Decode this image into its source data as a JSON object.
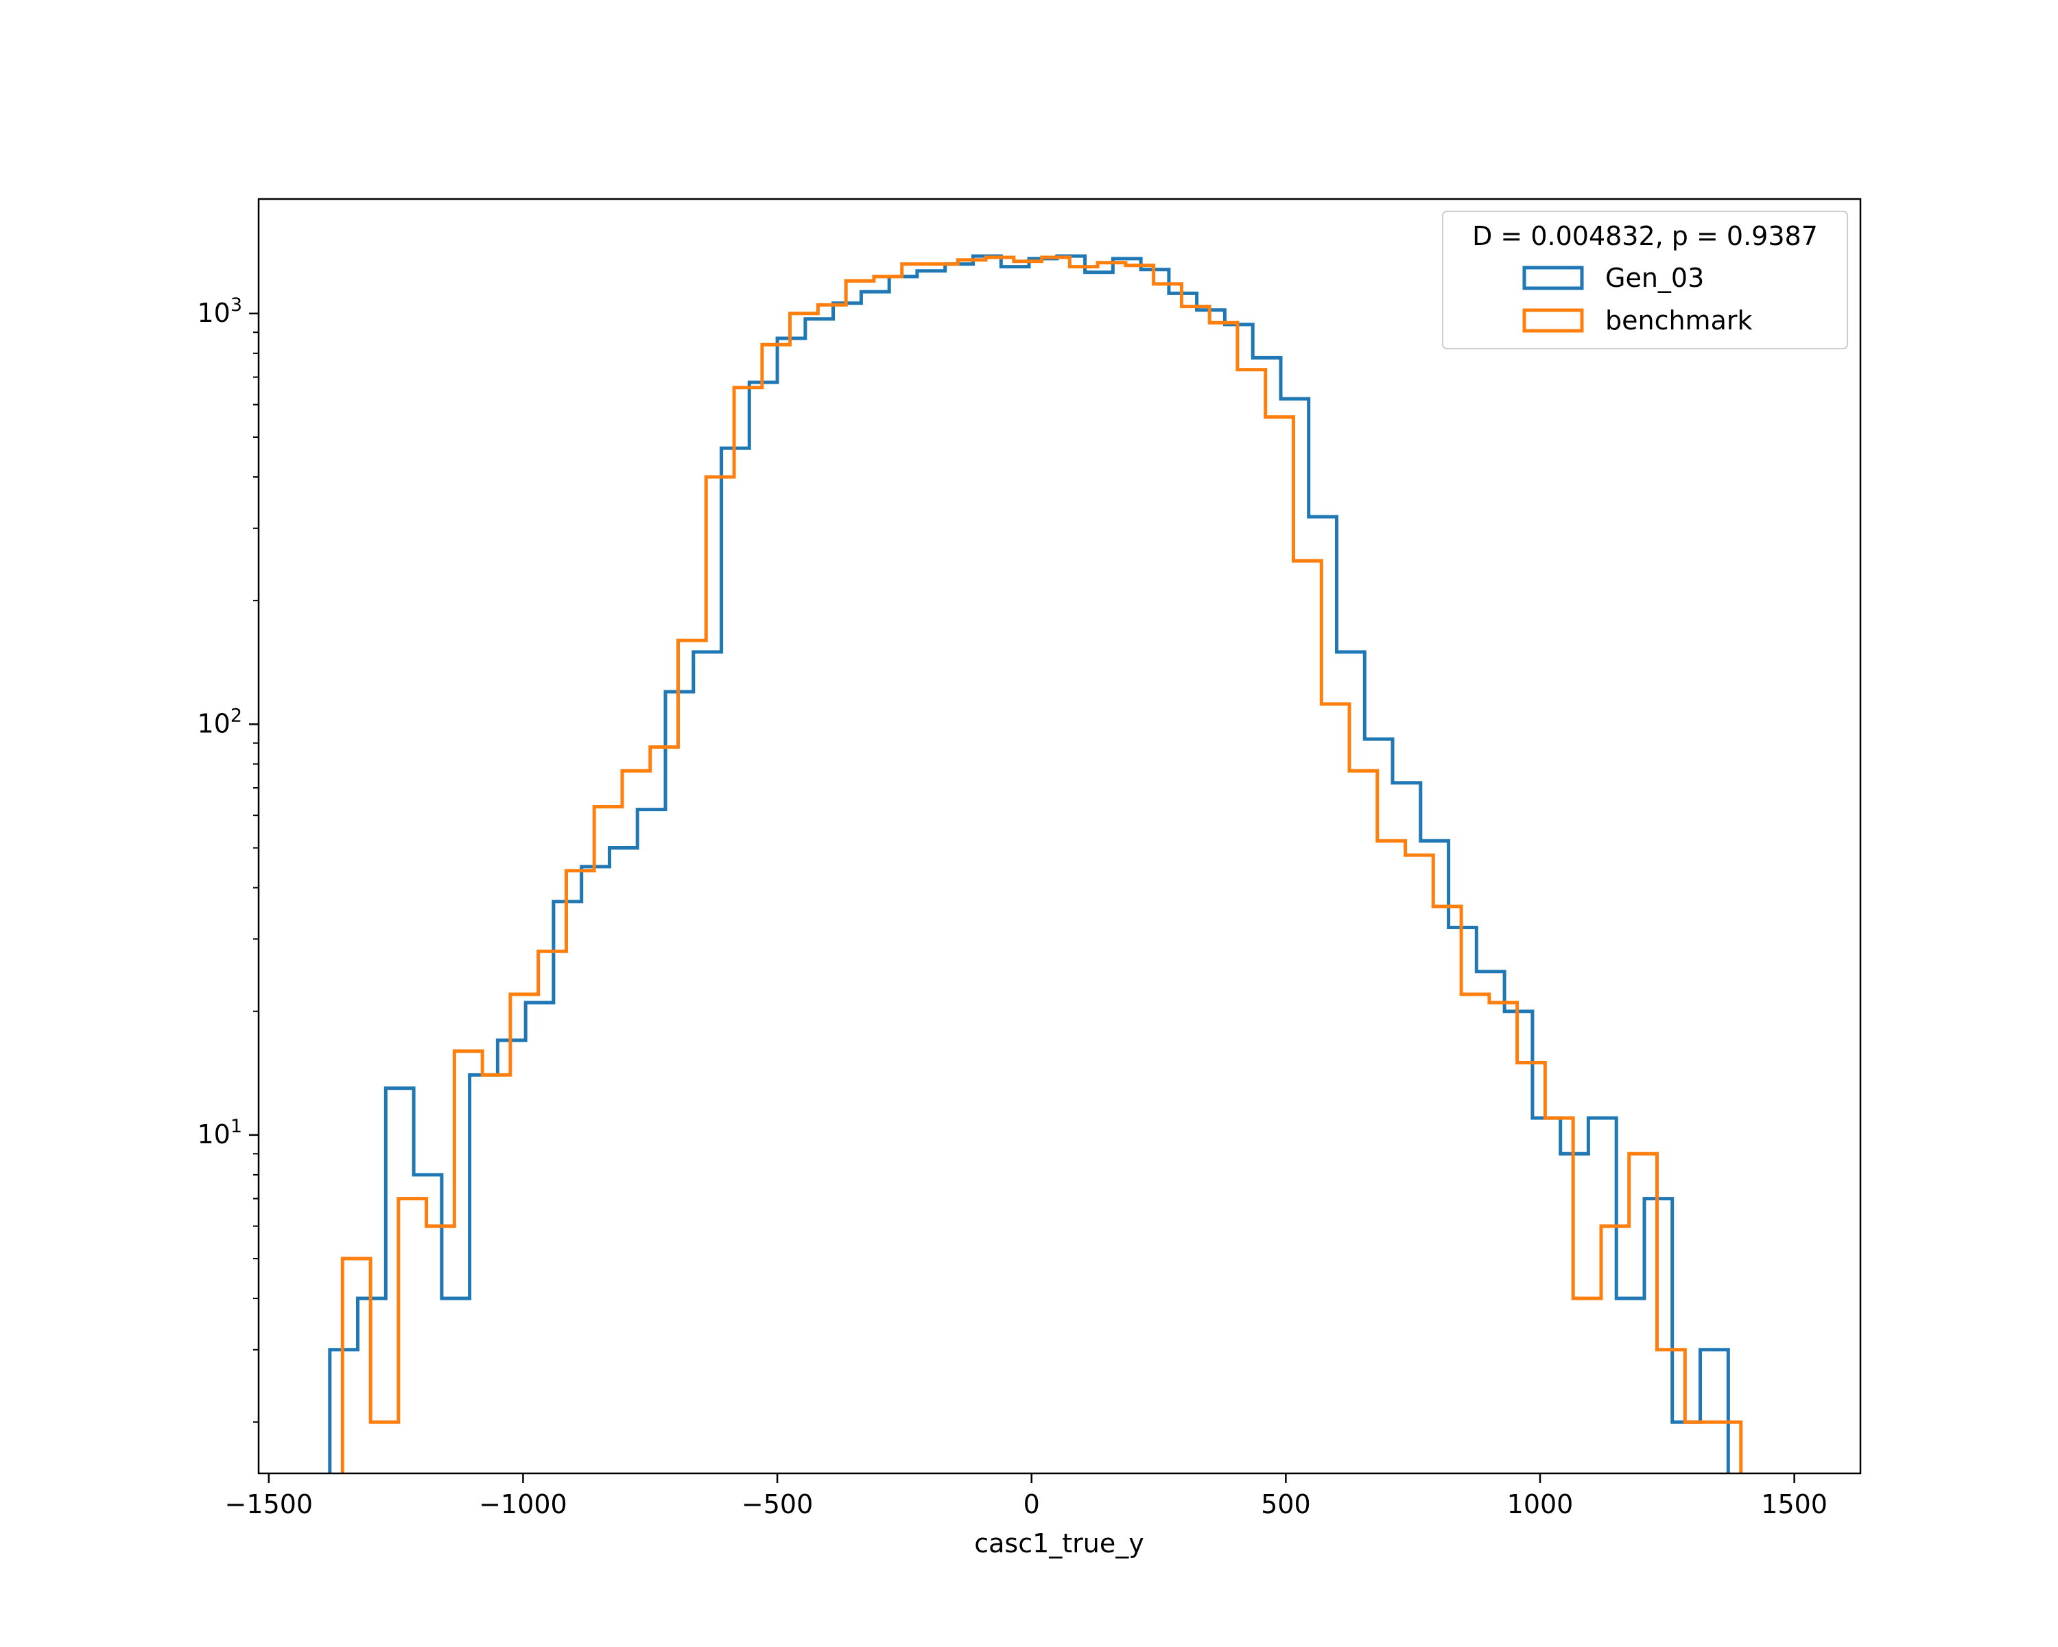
{
  "chart_data": {
    "type": "histogram",
    "title": "",
    "xlabel": "casc1_true_y",
    "ylabel": "",
    "xlim": [
      -1520,
      1630
    ],
    "ylim": [
      1.5,
      1900
    ],
    "yscale": "log",
    "grid": false,
    "legend": {
      "title": "D = 0.004832, p = 0.9387",
      "placement": "top-right"
    },
    "x_ticks": [
      -1500,
      -1000,
      -500,
      0,
      500,
      1000,
      1500
    ],
    "x_tick_labels": [
      "−1500",
      "−1000",
      "−500",
      "0",
      "500",
      "1000",
      "1500"
    ],
    "y_ticks": [
      {
        "value": 10,
        "base": "10",
        "exp": "1"
      },
      {
        "value": 100,
        "base": "10",
        "exp": "2"
      },
      {
        "value": 1000,
        "base": "10",
        "exp": "3"
      }
    ],
    "series": [
      {
        "name": "Gen_03",
        "color": "#1f77b4",
        "edges": [
          -1380,
          -1325,
          -1270,
          -1215,
          -1160,
          -1105,
          -1050,
          -995,
          -940,
          -885,
          -830,
          -775,
          -720,
          -665,
          -610,
          -555,
          -500,
          -445,
          -390,
          -335,
          -280,
          -225,
          -170,
          -115,
          -60,
          -5,
          50,
          105,
          160,
          215,
          270,
          325,
          380,
          435,
          490,
          545,
          600,
          655,
          710,
          765,
          820,
          875,
          930,
          985,
          1040,
          1095,
          1150,
          1205,
          1260,
          1315,
          1370,
          1425
        ],
        "counts": [
          3,
          4,
          13,
          8,
          4,
          14,
          17,
          21,
          37,
          45,
          50,
          62,
          120,
          150,
          470,
          680,
          870,
          970,
          1060,
          1130,
          1230,
          1270,
          1320,
          1380,
          1300,
          1360,
          1380,
          1260,
          1360,
          1280,
          1120,
          1020,
          940,
          780,
          620,
          320,
          150,
          92,
          72,
          52,
          32,
          25,
          20,
          11,
          9,
          11,
          4,
          7,
          2,
          3,
          0
        ]
      },
      {
        "name": "benchmark",
        "color": "#ff7f0e",
        "edges": [
          -1355,
          -1300,
          -1245,
          -1190,
          -1135,
          -1080,
          -1025,
          -970,
          -915,
          -860,
          -805,
          -750,
          -695,
          -640,
          -585,
          -530,
          -475,
          -420,
          -365,
          -310,
          -255,
          -200,
          -145,
          -90,
          -35,
          20,
          75,
          130,
          185,
          240,
          295,
          350,
          405,
          460,
          515,
          570,
          625,
          680,
          735,
          790,
          845,
          900,
          955,
          1010,
          1065,
          1120,
          1175,
          1230,
          1285,
          1340,
          1395,
          1450,
          1490
        ],
        "counts": [
          5,
          2,
          7,
          6,
          16,
          14,
          22,
          28,
          44,
          63,
          77,
          88,
          160,
          400,
          660,
          840,
          1000,
          1050,
          1200,
          1230,
          1320,
          1320,
          1350,
          1370,
          1340,
          1370,
          1300,
          1330,
          1310,
          1180,
          1040,
          950,
          730,
          560,
          250,
          112,
          77,
          52,
          48,
          36,
          22,
          21,
          15,
          11,
          4,
          6,
          9,
          3,
          2,
          2,
          0,
          0
        ]
      }
    ]
  }
}
